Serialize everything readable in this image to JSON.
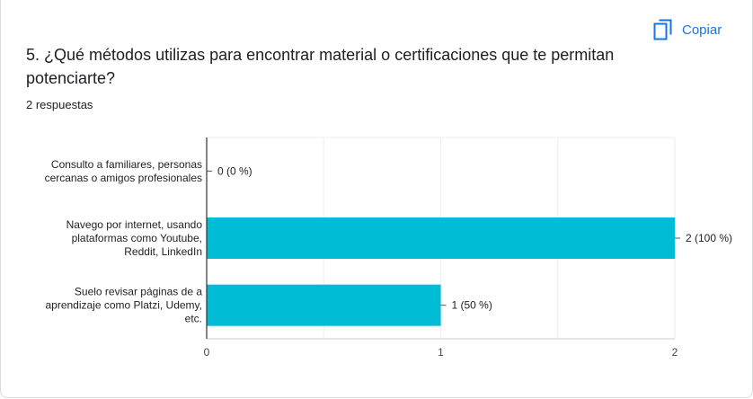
{
  "copy_button": {
    "label": "Copiar",
    "icon": "copy-icon",
    "color": "#1a73e8"
  },
  "question": "5. ¿Qué métodos utilizas para encontrar material o certificaciones que te permitan potenciarte?",
  "responses": "2 respuestas",
  "chart_data": {
    "type": "bar",
    "orientation": "horizontal",
    "categories": [
      [
        "Consulto a familiares, personas",
        "cercanas o amigos profesionales"
      ],
      [
        "Navego por internet, usando",
        "plataformas como Youtube,",
        "Reddit, LinkedIn"
      ],
      [
        "Suelo revisar páginas de a",
        "aprendizaje como Platzi, Udemy,",
        "etc."
      ]
    ],
    "values": [
      0,
      2,
      1
    ],
    "data_labels": [
      "0 (0 %)",
      "2 (100 %)",
      "1 (50 %)"
    ],
    "x_ticks": [
      0,
      1,
      2
    ],
    "xlim": [
      0,
      2
    ],
    "bar_color": "#00bcd4",
    "grid": true
  }
}
